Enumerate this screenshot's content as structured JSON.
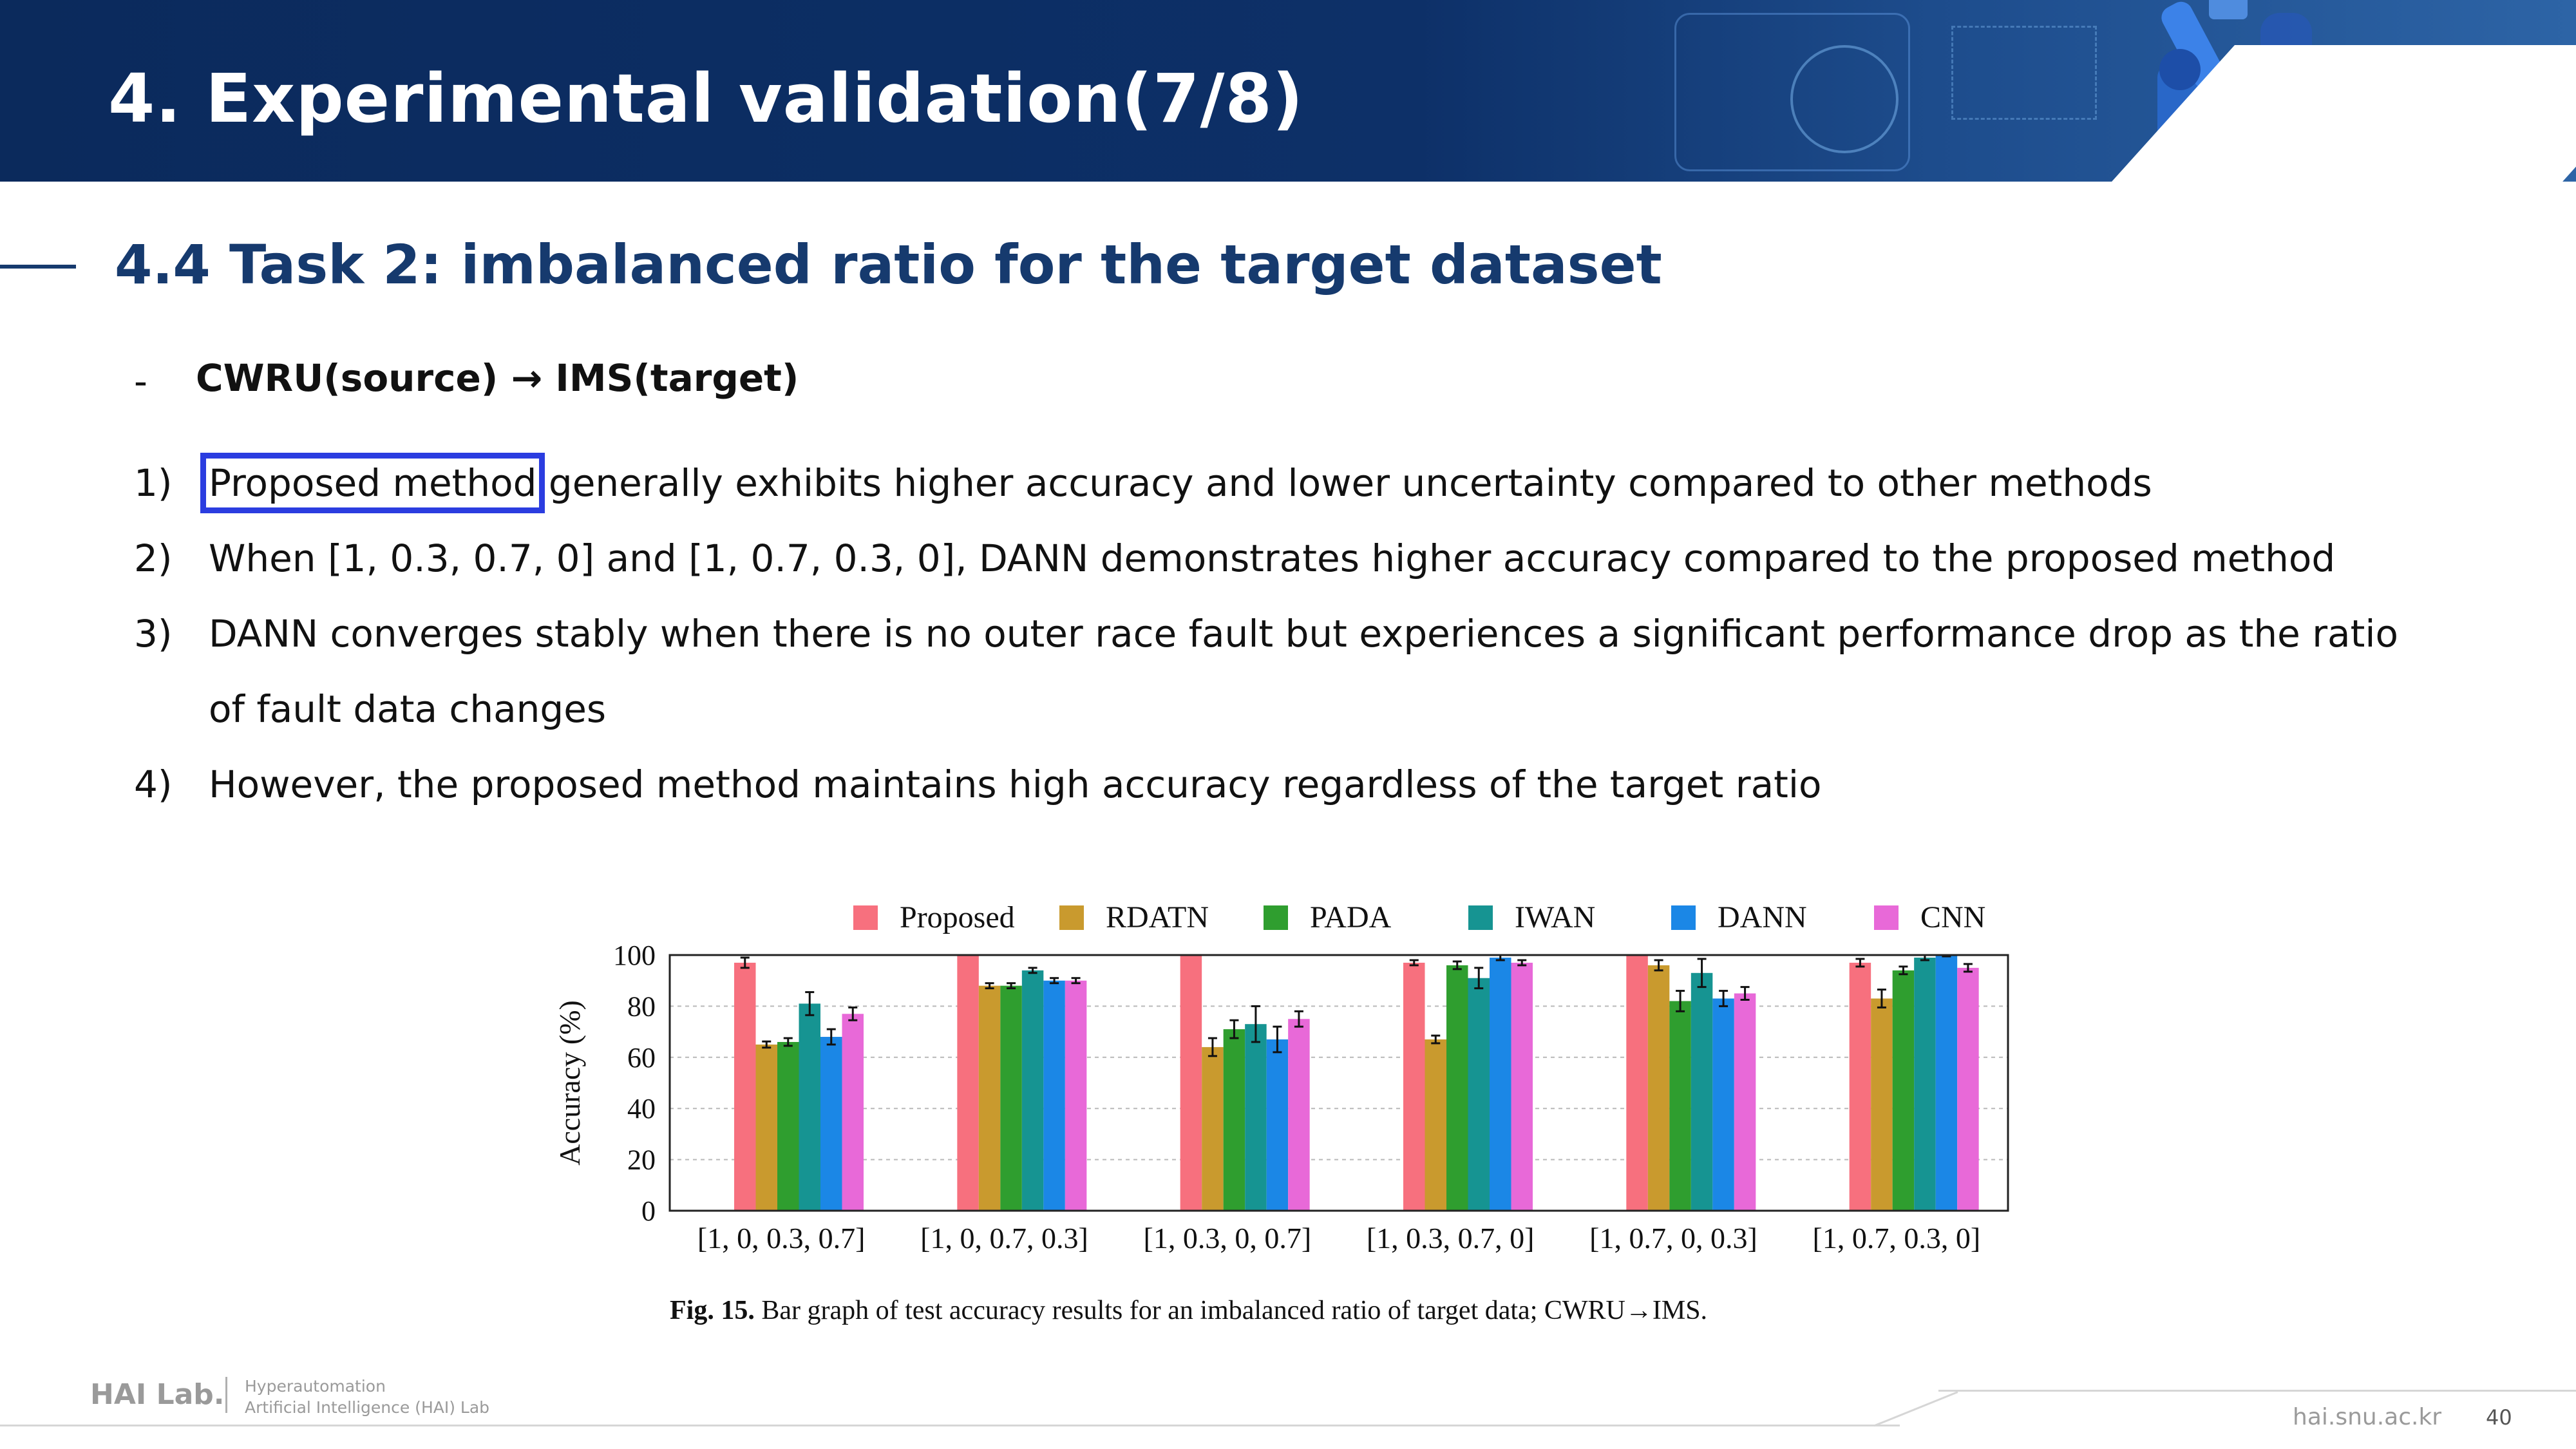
{
  "header": {
    "title": "4. Experimental validation(7/8)"
  },
  "section": {
    "heading": "4.4 Task 2: imbalanced ratio for the target dataset",
    "sub_dash": "-",
    "subheading": "CWRU(source) → IMS(target)"
  },
  "points": [
    {
      "num": "1)",
      "highlight": "Proposed method",
      "rest": " generally exhibits higher accuracy and lower uncertainty compared to other methods"
    },
    {
      "num": "2)",
      "text": "When [1, 0.3, 0.7, 0] and [1, 0.7, 0.3, 0], DANN demonstrates higher accuracy compared to the proposed method"
    },
    {
      "num": "3)",
      "text": "DANN converges stably when there is no outer race fault but experiences a significant performance drop as the ratio",
      "cont": "of fault data changes"
    },
    {
      "num": "4)",
      "text": "However, the proposed method maintains high accuracy regardless of the target ratio"
    }
  ],
  "chart_data": {
    "type": "bar",
    "title": "",
    "ylabel": "Accuracy (%)",
    "xlabel": "",
    "ylim": [
      0,
      100
    ],
    "yticks": [
      0,
      20,
      40,
      60,
      80,
      100
    ],
    "categories": [
      "[1, 0, 0.3, 0.7]",
      "[1, 0, 0.7, 0.3]",
      "[1, 0.3, 0, 0.7]",
      "[1, 0.3, 0.7, 0]",
      "[1, 0.7, 0, 0.3]",
      "[1, 0.7, 0.3, 0]"
    ],
    "series": [
      {
        "name": "Proposed",
        "color": "#f7707e",
        "values": [
          97,
          100,
          100,
          97,
          100,
          97
        ],
        "err": [
          2,
          0,
          0,
          1,
          0,
          1.5
        ]
      },
      {
        "name": "RDATN",
        "color": "#c99a2e",
        "values": [
          65,
          88,
          64,
          67,
          96,
          83
        ],
        "err": [
          1.2,
          1,
          3.5,
          1.5,
          2,
          3.5
        ]
      },
      {
        "name": "PADA",
        "color": "#2f9e2f",
        "values": [
          66,
          88,
          71,
          96,
          82,
          94
        ],
        "err": [
          1.5,
          1,
          3.5,
          1.5,
          4,
          1.5
        ]
      },
      {
        "name": "IWAN",
        "color": "#169492",
        "values": [
          81,
          94,
          73,
          91,
          93,
          99
        ],
        "err": [
          4.5,
          1,
          7,
          4,
          5.5,
          1
        ]
      },
      {
        "name": "DANN",
        "color": "#1b87e6",
        "values": [
          68,
          90,
          67,
          99,
          83,
          100
        ],
        "err": [
          3,
          1,
          5,
          1,
          3,
          0.5
        ]
      },
      {
        "name": "CNN",
        "color": "#e869d8",
        "values": [
          77,
          90,
          75,
          97,
          85,
          95
        ],
        "err": [
          2.5,
          1,
          3,
          1,
          2.5,
          1.5
        ]
      }
    ],
    "caption_label": "Fig. 15.",
    "caption_text": "Bar graph of test accuracy results for an imbalanced ratio of target data; CWRU→IMS."
  },
  "footer": {
    "logo": "HAI Lab.",
    "sub1": "Hyperautomation",
    "sub2": "Artificial Intelligence (HAI) Lab",
    "url": "hai.snu.ac.kr",
    "page": "40"
  }
}
